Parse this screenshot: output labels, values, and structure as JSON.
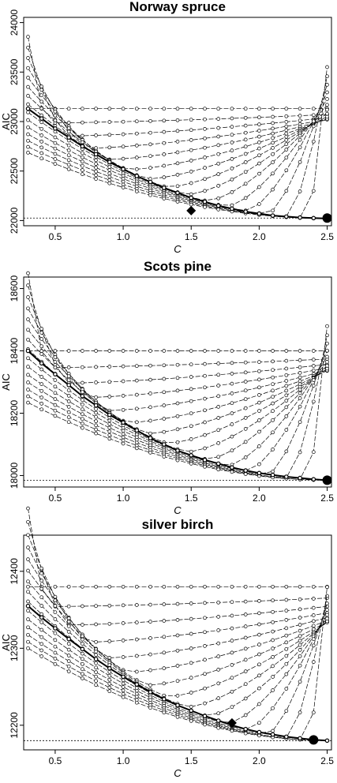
{
  "chart_data": [
    {
      "type": "line",
      "title": "Norway spruce",
      "xlabel": "C",
      "ylabel": "AIC",
      "xlim": [
        0.3,
        2.5
      ],
      "ylim": [
        22000,
        24000
      ],
      "xticks": [
        "0.5",
        "1.0",
        "1.5",
        "2.0",
        "2.5"
      ],
      "yticks": [
        "22000",
        "22500",
        "23000",
        "23500",
        "24000"
      ],
      "reference_line": 22025,
      "family": {
        "base_curve": {
          "y_at_0_3": 23130,
          "y_at_2_5": 22020
        },
        "curve_count": 16,
        "min_offset": 240,
        "max_offset": 1920,
        "curve_start_lift": 840
      },
      "highlight_series": {
        "x": [
          0.3,
          0.4,
          0.5,
          0.6,
          0.7,
          0.8,
          0.9,
          1.0,
          1.1,
          1.2,
          1.3,
          1.4,
          1.5,
          1.6,
          1.7,
          1.8,
          1.9,
          2.0,
          2.1,
          2.2,
          2.3,
          2.4,
          2.5
        ],
        "y": [
          23130,
          23030,
          22930,
          22840,
          22750,
          22670,
          22590,
          22520,
          22450,
          22390,
          22330,
          22280,
          22230,
          22190,
          22150,
          22120,
          22090,
          22070,
          22050,
          22040,
          22030,
          22025,
          22020
        ]
      },
      "markers": [
        {
          "shape": "diamond",
          "x": 1.5,
          "y": 22100
        },
        {
          "shape": "circle",
          "x": 2.5,
          "y": 22025
        }
      ]
    },
    {
      "type": "line",
      "title": "Scots pine",
      "xlabel": "C",
      "ylabel": "AIC",
      "xlim": [
        0.3,
        2.5
      ],
      "ylim": [
        17980,
        18620
      ],
      "xticks": [
        "0.5",
        "1.0",
        "1.5",
        "2.0",
        "2.5"
      ],
      "yticks": [
        "18000",
        "18200",
        "18400",
        "18600"
      ],
      "reference_line": 17985,
      "family": {
        "base_curve": {
          "y_at_0_3": 18400,
          "y_at_2_5": 17985
        },
        "curve_count": 16,
        "min_offset": 120,
        "max_offset": 620,
        "curve_start_lift": 290
      },
      "highlight_series": {
        "x": [
          0.3,
          0.4,
          0.5,
          0.6,
          0.7,
          0.8,
          0.9,
          1.0,
          1.1,
          1.2,
          1.3,
          1.4,
          1.5,
          1.6,
          1.7,
          1.8,
          1.9,
          2.0,
          2.1,
          2.2,
          2.3,
          2.4,
          2.5
        ],
        "y": [
          18400,
          18360,
          18325,
          18290,
          18255,
          18225,
          18195,
          18170,
          18145,
          18120,
          18100,
          18080,
          18065,
          18050,
          18038,
          18026,
          18016,
          18008,
          18002,
          17996,
          17992,
          17988,
          17985
        ]
      },
      "markers": [
        {
          "shape": "circle",
          "x": 2.5,
          "y": 17985
        }
      ]
    },
    {
      "type": "line",
      "title": "silver birch",
      "xlabel": "C",
      "ylabel": "AIC",
      "xlim": [
        0.3,
        2.5
      ],
      "ylim": [
        12175,
        12440
      ],
      "xticks": [
        "0.5",
        "1.0",
        "1.5",
        "2.0",
        "2.5"
      ],
      "yticks": [
        "12200",
        "12300",
        "12400"
      ],
      "reference_line": 12180,
      "family": {
        "base_curve": {
          "y_at_0_3": 12380,
          "y_at_2_5": 12180
        },
        "curve_count": 16,
        "min_offset": 0,
        "max_offset": 250,
        "curve_start_lift": 120
      },
      "highlight_series": {
        "x": [
          0.3,
          0.4,
          0.5,
          0.6,
          0.7,
          0.8,
          0.9,
          1.0,
          1.1,
          1.2,
          1.3,
          1.4,
          1.5,
          1.6,
          1.7,
          1.8,
          1.9,
          2.0,
          2.1,
          2.2,
          2.3,
          2.4,
          2.5
        ],
        "y": [
          12355,
          12340,
          12326,
          12312,
          12299,
          12286,
          12274,
          12263,
          12253,
          12243,
          12234,
          12226,
          12219,
          12212,
          12206,
          12200,
          12195,
          12191,
          12188,
          12185,
          12183,
          12181,
          12180
        ]
      },
      "markers": [
        {
          "shape": "diamond",
          "x": 1.8,
          "y": 12203
        },
        {
          "shape": "circle",
          "x": 2.4,
          "y": 12181
        }
      ]
    }
  ]
}
